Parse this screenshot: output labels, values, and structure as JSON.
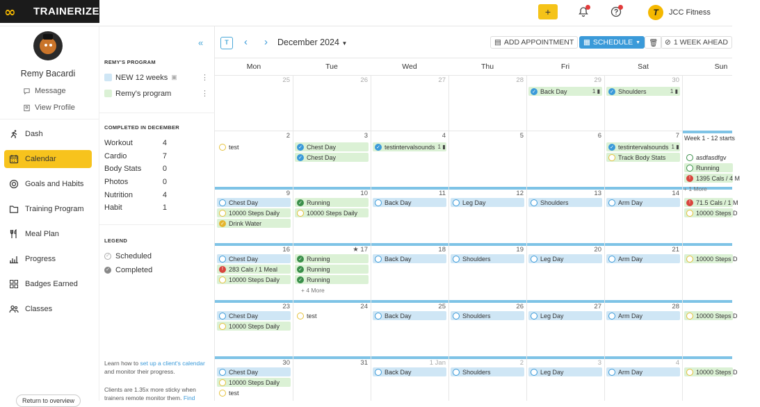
{
  "app": {
    "name": "TRAINERIZE",
    "logo_mark": "∞",
    "brand_logo_letter": "T",
    "brand_name": "JCC Fitness"
  },
  "topbar": {
    "plus_label": "+"
  },
  "client": {
    "name": "Remy Bacardi",
    "message_label": "Message",
    "profile_label": "View Profile"
  },
  "nav": [
    {
      "label": "Dash",
      "icon": "running-icon",
      "active": false
    },
    {
      "label": "Calendar",
      "icon": "calendar-icon",
      "active": true
    },
    {
      "label": "Goals and Habits",
      "icon": "target-icon",
      "active": false
    },
    {
      "label": "Training Program",
      "icon": "folder-icon",
      "active": false
    },
    {
      "label": "Meal Plan",
      "icon": "utensils-icon",
      "active": false
    },
    {
      "label": "Progress",
      "icon": "bar-chart-icon",
      "active": false
    },
    {
      "label": "Badges Earned",
      "icon": "badges-icon",
      "active": false
    },
    {
      "label": "Classes",
      "icon": "people-icon",
      "active": false
    }
  ],
  "return_label": "Return to overview",
  "panel": {
    "program_heading": "REMY'S PROGRAM",
    "programs": [
      {
        "label": "NEW 12 weeks",
        "color": "#cfe6f5"
      },
      {
        "label": "Remy's program",
        "color": "#dbf1d5"
      }
    ],
    "completed_heading": "COMPLETED IN DECEMBER",
    "stats": [
      {
        "label": "Workout",
        "value": "4"
      },
      {
        "label": "Cardio",
        "value": "7"
      },
      {
        "label": "Body Stats",
        "value": "0"
      },
      {
        "label": "Photos",
        "value": "0"
      },
      {
        "label": "Nutrition",
        "value": "4"
      },
      {
        "label": "Habit",
        "value": "1"
      }
    ],
    "legend_heading": "LEGEND",
    "legend": [
      {
        "label": "Scheduled"
      },
      {
        "label": "Completed"
      }
    ],
    "info1_pre": "Learn how to ",
    "info1_link": "set up a client's calendar",
    "info1_post": " and monitor their progress.",
    "info2_pre": "Clients are 1.35x more sticky when trainers remote monitor them. ",
    "info2_link": "Find"
  },
  "calendar": {
    "month_label": "December 2024",
    "today_label": "T",
    "add_appointment": "ADD APPOINTMENT",
    "schedule": "SCHEDULE",
    "week_ahead": "1 WEEK AHEAD",
    "days": [
      "Mon",
      "Tue",
      "Wed",
      "Thu",
      "Fri",
      "Sat",
      "Sun"
    ],
    "weeks": [
      {
        "dates": [
          "25",
          "26",
          "27",
          "28",
          "29",
          "30",
          ""
        ],
        "dim": [
          true,
          true,
          true,
          true,
          true,
          true,
          false
        ]
      },
      {
        "dates": [
          "2",
          "3",
          "4",
          "5",
          "6",
          "7",
          ""
        ],
        "dim": [
          false,
          false,
          false,
          false,
          false,
          false,
          false
        ]
      },
      {
        "dates": [
          "9",
          "10",
          "11",
          "12",
          "13",
          "14",
          ""
        ],
        "dim": [
          false,
          false,
          false,
          false,
          false,
          false,
          false
        ]
      },
      {
        "dates": [
          "16",
          "★ 17",
          "18",
          "19",
          "20",
          "21",
          ""
        ],
        "dim": [
          false,
          false,
          false,
          false,
          false,
          false,
          false
        ]
      },
      {
        "dates": [
          "23",
          "24",
          "25",
          "26",
          "27",
          "28",
          ""
        ],
        "dim": [
          false,
          false,
          false,
          false,
          false,
          false,
          false
        ]
      },
      {
        "dates": [
          "30",
          "31",
          "1 Jan",
          "2",
          "3",
          "4",
          ""
        ],
        "dim": [
          false,
          false,
          true,
          true,
          true,
          true,
          false
        ]
      }
    ],
    "events": [
      {
        "w": 0,
        "d": 4,
        "r": 0,
        "label": "Back Day",
        "color": "green",
        "icon": "done-blue",
        "count": "1"
      },
      {
        "w": 0,
        "d": 5,
        "r": 0,
        "label": "Shoulders",
        "color": "green",
        "icon": "done-blue",
        "count": "1"
      },
      {
        "w": 1,
        "d": 0,
        "r": 0,
        "label": "test",
        "color": "none",
        "icon": "sch-yellow"
      },
      {
        "w": 1,
        "d": 1,
        "r": 0,
        "label": "Chest Day",
        "color": "green",
        "icon": "done-blue"
      },
      {
        "w": 1,
        "d": 1,
        "r": 1,
        "label": "Chest Day",
        "color": "green",
        "icon": "done-blue"
      },
      {
        "w": 1,
        "d": 2,
        "r": 0,
        "label": "testintervalsounds",
        "color": "green",
        "icon": "done-blue",
        "count": "1"
      },
      {
        "w": 1,
        "d": 5,
        "r": 0,
        "label": "testintervalsounds",
        "color": "green",
        "icon": "done-blue",
        "count": "1"
      },
      {
        "w": 1,
        "d": 5,
        "r": 1,
        "label": "Track Body Stats",
        "color": "green",
        "icon": "sch-yellow"
      },
      {
        "w": 1,
        "d": 6,
        "r": 1,
        "label": "asdfasdfgv",
        "color": "none",
        "icon": "sch-green"
      },
      {
        "w": 1,
        "d": 6,
        "r": 2,
        "label": "Running",
        "color": "green",
        "icon": "sch-green"
      },
      {
        "w": 1,
        "d": 6,
        "r": 3,
        "label": "1395 Cals / 4 M",
        "color": "green",
        "icon": "done-red"
      },
      {
        "w": 2,
        "d": 0,
        "r": 0,
        "label": "Chest Day",
        "color": "blue",
        "icon": "sch-blue"
      },
      {
        "w": 2,
        "d": 0,
        "r": 1,
        "label": "10000 Steps Daily",
        "color": "green",
        "icon": "sch-yellow"
      },
      {
        "w": 2,
        "d": 0,
        "r": 2,
        "label": "Drink Water",
        "color": "green",
        "icon": "done-yellow"
      },
      {
        "w": 2,
        "d": 1,
        "r": 0,
        "label": "Running",
        "color": "green",
        "icon": "done-green"
      },
      {
        "w": 2,
        "d": 1,
        "r": 1,
        "label": "10000 Steps Daily",
        "color": "green",
        "icon": "sch-yellow"
      },
      {
        "w": 2,
        "d": 2,
        "r": 0,
        "label": "Back Day",
        "color": "blue",
        "icon": "sch-blue"
      },
      {
        "w": 2,
        "d": 3,
        "r": 0,
        "label": "Leg Day",
        "color": "blue",
        "icon": "sch-blue"
      },
      {
        "w": 2,
        "d": 4,
        "r": 0,
        "label": "Shoulders",
        "color": "blue",
        "icon": "sch-blue"
      },
      {
        "w": 2,
        "d": 5,
        "r": 0,
        "label": "Arm Day",
        "color": "blue",
        "icon": "sch-blue"
      },
      {
        "w": 2,
        "d": 6,
        "r": 0,
        "label": "71.5 Cals / 1 M",
        "color": "green",
        "icon": "done-red"
      },
      {
        "w": 2,
        "d": 6,
        "r": 1,
        "label": "10000 Steps D",
        "color": "green",
        "icon": "sch-yellow"
      },
      {
        "w": 3,
        "d": 0,
        "r": 0,
        "label": "Chest Day",
        "color": "blue",
        "icon": "sch-blue"
      },
      {
        "w": 3,
        "d": 0,
        "r": 1,
        "label": "283 Cals / 1 Meal",
        "color": "green",
        "icon": "done-red"
      },
      {
        "w": 3,
        "d": 0,
        "r": 2,
        "label": "10000 Steps Daily",
        "color": "green",
        "icon": "sch-yellow"
      },
      {
        "w": 3,
        "d": 1,
        "r": 0,
        "label": "Running",
        "color": "green",
        "icon": "done-green"
      },
      {
        "w": 3,
        "d": 1,
        "r": 1,
        "label": "Running",
        "color": "green",
        "icon": "done-green"
      },
      {
        "w": 3,
        "d": 1,
        "r": 2,
        "label": "Running",
        "color": "green",
        "icon": "done-green"
      },
      {
        "w": 3,
        "d": 2,
        "r": 0,
        "label": "Back Day",
        "color": "blue",
        "icon": "sch-blue"
      },
      {
        "w": 3,
        "d": 3,
        "r": 0,
        "label": "Shoulders",
        "color": "blue",
        "icon": "sch-blue"
      },
      {
        "w": 3,
        "d": 4,
        "r": 0,
        "label": "Leg Day",
        "color": "blue",
        "icon": "sch-blue"
      },
      {
        "w": 3,
        "d": 5,
        "r": 0,
        "label": "Arm Day",
        "color": "blue",
        "icon": "sch-blue"
      },
      {
        "w": 3,
        "d": 6,
        "r": 0,
        "label": "10000 Steps D",
        "color": "green",
        "icon": "sch-yellow"
      },
      {
        "w": 4,
        "d": 0,
        "r": 0,
        "label": "Chest Day",
        "color": "blue",
        "icon": "sch-blue"
      },
      {
        "w": 4,
        "d": 0,
        "r": 1,
        "label": "10000 Steps Daily",
        "color": "green",
        "icon": "sch-yellow"
      },
      {
        "w": 4,
        "d": 1,
        "r": 0,
        "label": "test",
        "color": "none",
        "icon": "sch-yellow"
      },
      {
        "w": 4,
        "d": 2,
        "r": 0,
        "label": "Back Day",
        "color": "blue",
        "icon": "sch-blue"
      },
      {
        "w": 4,
        "d": 3,
        "r": 0,
        "label": "Shoulders",
        "color": "blue",
        "icon": "sch-blue"
      },
      {
        "w": 4,
        "d": 4,
        "r": 0,
        "label": "Leg Day",
        "color": "blue",
        "icon": "sch-blue"
      },
      {
        "w": 4,
        "d": 5,
        "r": 0,
        "label": "Arm Day",
        "color": "blue",
        "icon": "sch-blue"
      },
      {
        "w": 4,
        "d": 6,
        "r": 0,
        "label": "10000 Steps D",
        "color": "green",
        "icon": "sch-yellow"
      },
      {
        "w": 5,
        "d": 0,
        "r": 0,
        "label": "Chest Day",
        "color": "blue",
        "icon": "sch-blue"
      },
      {
        "w": 5,
        "d": 0,
        "r": 1,
        "label": "10000 Steps Daily",
        "color": "green",
        "icon": "sch-yellow"
      },
      {
        "w": 5,
        "d": 0,
        "r": 2,
        "label": "test",
        "color": "none",
        "icon": "sch-yellow"
      },
      {
        "w": 5,
        "d": 2,
        "r": 0,
        "label": "Back Day",
        "color": "blue",
        "icon": "sch-blue"
      },
      {
        "w": 5,
        "d": 3,
        "r": 0,
        "label": "Shoulders",
        "color": "blue",
        "icon": "sch-blue"
      },
      {
        "w": 5,
        "d": 4,
        "r": 0,
        "label": "Leg Day",
        "color": "blue",
        "icon": "sch-blue"
      },
      {
        "w": 5,
        "d": 5,
        "r": 0,
        "label": "Arm Day",
        "color": "blue",
        "icon": "sch-blue"
      },
      {
        "w": 5,
        "d": 6,
        "r": 0,
        "label": "10000 Steps D",
        "color": "green",
        "icon": "sch-yellow"
      }
    ],
    "more_links": [
      {
        "w": 1,
        "d": 6,
        "r": 4,
        "label": "+ 1 More"
      },
      {
        "w": 3,
        "d": 1,
        "r": 3,
        "label": "+ 4 More"
      }
    ],
    "week_labels": [
      {
        "w": 1,
        "d": 6,
        "label": "Week 1 - 12 starts"
      }
    ]
  }
}
